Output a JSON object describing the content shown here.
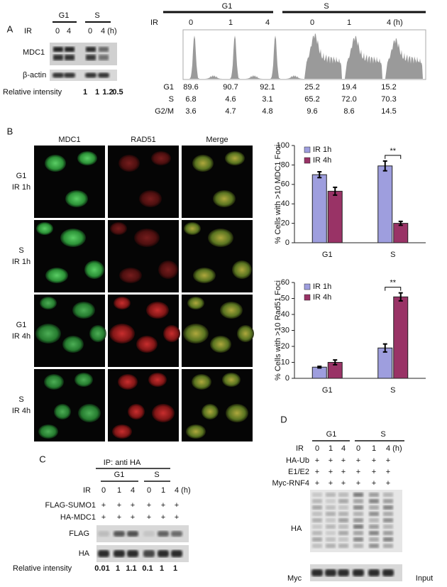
{
  "panel_labels": [
    "A",
    "B",
    "C",
    "D"
  ],
  "panel_a_blot": {
    "groups": [
      "G1",
      "S"
    ],
    "ir_label": "IR",
    "ir": [
      "0",
      "4",
      "0",
      "4 (h)"
    ],
    "blots": [
      "MDC1",
      "β-actin"
    ],
    "relative_intensity_label": "Relative intensity",
    "relative_intensity": [
      "1",
      "1",
      "1.2",
      "0.5"
    ]
  },
  "panel_a_flow": {
    "groups": [
      "G1",
      "S"
    ],
    "ir_label": "IR",
    "ir": [
      "0",
      "1",
      "4",
      "0",
      "1",
      "4 (h)"
    ],
    "rows": [
      {
        "label": "G1",
        "values": [
          "89.6",
          "90.7",
          "92.1",
          "25.2",
          "19.4",
          "15.2"
        ]
      },
      {
        "label": "S",
        "values": [
          "6.8",
          "4.6",
          "3.1",
          "65.2",
          "72.0",
          "70.3"
        ]
      },
      {
        "label": "G2/M",
        "values": [
          "3.6",
          "4.7",
          "4.8",
          "9.6",
          "8.6",
          "14.5"
        ]
      }
    ]
  },
  "panel_b": {
    "columns": [
      "MDC1",
      "RAD51",
      "Merge"
    ],
    "rows": [
      [
        "G1",
        "IR 1h"
      ],
      [
        "S",
        "IR 1h"
      ],
      [
        "G1",
        "IR 4h"
      ],
      [
        "S",
        "IR 4h"
      ]
    ]
  },
  "chart_data": [
    {
      "type": "bar",
      "ylabel": "% Cells with >10 MDC1 Foci",
      "categories": [
        "G1",
        "S"
      ],
      "series": [
        {
          "name": "IR 1h",
          "color": "#9e9ede",
          "values": [
            70,
            79
          ],
          "errors": [
            3,
            5
          ]
        },
        {
          "name": "IR 4h",
          "color": "#993366",
          "values": [
            53,
            20
          ],
          "errors": [
            4,
            2
          ]
        }
      ],
      "ylim": [
        0,
        100
      ],
      "yticks": [
        0,
        20,
        40,
        60,
        80,
        100
      ],
      "legend": "upper left",
      "annotation": "**"
    },
    {
      "type": "bar",
      "ylabel": "% Cells with >10 Rad51 Foci",
      "categories": [
        "G1",
        "S"
      ],
      "series": [
        {
          "name": "IR 1h",
          "color": "#9e9ede",
          "values": [
            7,
            19
          ],
          "errors": [
            0.5,
            2.5
          ]
        },
        {
          "name": "IR 4h",
          "color": "#993366",
          "values": [
            10,
            51
          ],
          "errors": [
            1.5,
            2.5
          ]
        }
      ],
      "ylim": [
        0,
        60
      ],
      "yticks": [
        0,
        10,
        20,
        30,
        40,
        50,
        60
      ],
      "legend": "upper left",
      "annotation": "**"
    }
  ],
  "panel_c": {
    "ip_label": "IP: anti HA",
    "groups": [
      "G1",
      "S"
    ],
    "ir_label": "IR",
    "ir": [
      "0",
      "1",
      "4",
      "0",
      "1",
      "4 (h)"
    ],
    "reagents": [
      {
        "label": "FLAG-SUMO1",
        "marks": [
          "+",
          "+",
          "+",
          "+",
          "+",
          "+"
        ]
      },
      {
        "label": "HA-MDC1",
        "marks": [
          "+",
          "+",
          "+",
          "+",
          "+",
          "+"
        ]
      }
    ],
    "blots": [
      "FLAG",
      "HA"
    ],
    "relative_intensity_label": "Relative intensity",
    "relative_intensity": [
      "0.01",
      "1",
      "1.1",
      "0.1",
      "1",
      "1"
    ]
  },
  "panel_d": {
    "groups": [
      "G1",
      "S"
    ],
    "ir_label": "IR",
    "ir": [
      "0",
      "1",
      "4",
      "0",
      "1",
      "4 (h)"
    ],
    "reagents": [
      {
        "label": "HA-Ub",
        "marks": [
          "+",
          "+",
          "+",
          "+",
          "+",
          "+"
        ]
      },
      {
        "label": "E1/E2",
        "marks": [
          "+",
          "+",
          "+",
          "+",
          "+",
          "+"
        ]
      },
      {
        "label": "Myc-RNF4",
        "marks": [
          "+",
          "+",
          "+",
          "+",
          "+",
          "+"
        ]
      }
    ],
    "blots": [
      "HA",
      "Myc"
    ],
    "input_label": "Input"
  }
}
